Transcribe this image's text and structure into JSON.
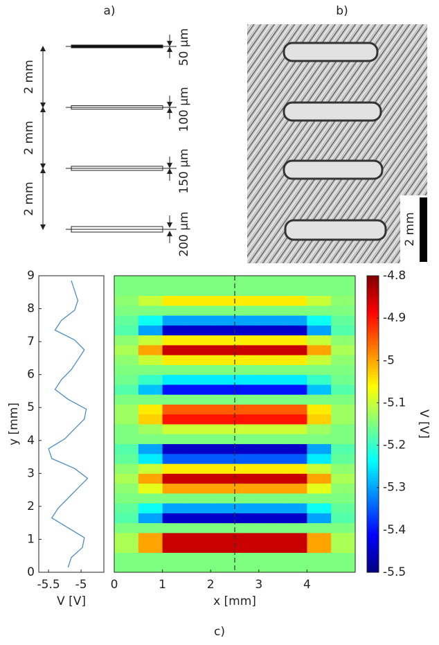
{
  "panel_a": {
    "label": "a)",
    "spacings": [
      "2 mm",
      "2 mm",
      "2 mm"
    ],
    "widths": [
      "50 µm",
      "100 µm",
      "150 µm",
      "200 µm"
    ]
  },
  "panel_b": {
    "label": "b)",
    "scale_bar": "2 mm"
  },
  "panel_c_label": "c)",
  "chart_data": [
    {
      "type": "line",
      "x_label": "V [V]",
      "y_label": "y [mm]",
      "color": "#4a8cc8",
      "y": [
        0.15,
        0.45,
        0.75,
        1.05,
        1.35,
        1.65,
        1.95,
        2.25,
        2.55,
        2.85,
        3.15,
        3.45,
        3.75,
        4.05,
        4.35,
        4.65,
        4.95,
        5.25,
        5.55,
        5.85,
        6.15,
        6.45,
        6.75,
        7.05,
        7.35,
        7.65,
        7.95,
        8.25,
        8.55,
        8.85
      ],
      "values": [
        -5.2,
        -5.15,
        -4.98,
        -4.95,
        -5.2,
        -5.45,
        -5.35,
        -5.2,
        -5.05,
        -4.9,
        -5.1,
        -5.45,
        -5.5,
        -5.25,
        -5.1,
        -4.95,
        -4.92,
        -5.2,
        -5.4,
        -5.3,
        -5.15,
        -5.05,
        -4.95,
        -5.1,
        -5.4,
        -5.3,
        -5.1,
        -5.05,
        -5.1,
        -5.15
      ],
      "xlim": [
        -5.65,
        -4.65
      ],
      "xticks": [
        -5.5,
        -5
      ],
      "ylim": [
        0,
        9
      ],
      "yticks": [
        0,
        1,
        2,
        3,
        4,
        5,
        6,
        7,
        8,
        9
      ]
    },
    {
      "type": "heatmap",
      "x_label": "x [mm]",
      "x": [
        0.25,
        0.75,
        1.25,
        1.75,
        2.25,
        2.75,
        3.25,
        3.75,
        4.25,
        4.75
      ],
      "y": [
        0.15,
        0.45,
        0.75,
        1.05,
        1.35,
        1.65,
        1.95,
        2.25,
        2.55,
        2.85,
        3.15,
        3.45,
        3.75,
        4.05,
        4.35,
        4.65,
        4.95,
        5.25,
        5.55,
        5.85,
        6.15,
        6.45,
        6.75,
        7.05,
        7.35,
        7.65,
        7.95,
        8.25,
        8.55,
        8.85
      ],
      "z": [
        [
          -5.15,
          -5.15,
          -5.15,
          -5.15,
          -5.15,
          -5.15,
          -5.15,
          -5.15,
          -5.15,
          -5.15
        ],
        [
          -5.15,
          -5.15,
          -5.15,
          -5.15,
          -5.15,
          -5.15,
          -5.15,
          -5.15,
          -5.15,
          -5.15
        ],
        [
          -5.12,
          -5.0,
          -4.85,
          -4.85,
          -4.85,
          -4.85,
          -4.85,
          -4.85,
          -5.0,
          -5.12
        ],
        [
          -5.12,
          -5.0,
          -4.85,
          -4.85,
          -4.85,
          -4.85,
          -4.85,
          -4.85,
          -5.0,
          -5.12
        ],
        [
          -5.15,
          -5.15,
          -5.15,
          -5.15,
          -5.15,
          -5.15,
          -5.15,
          -5.15,
          -5.15,
          -5.15
        ],
        [
          -5.18,
          -5.3,
          -5.45,
          -5.45,
          -5.45,
          -5.45,
          -5.45,
          -5.45,
          -5.3,
          -5.18
        ],
        [
          -5.17,
          -5.23,
          -5.3,
          -5.3,
          -5.3,
          -5.3,
          -5.3,
          -5.3,
          -5.23,
          -5.17
        ],
        [
          -5.15,
          -5.15,
          -5.15,
          -5.15,
          -5.15,
          -5.15,
          -5.15,
          -5.15,
          -5.15,
          -5.15
        ],
        [
          -5.14,
          -5.08,
          -5.0,
          -5.0,
          -5.0,
          -5.0,
          -5.0,
          -5.0,
          -5.08,
          -5.14
        ],
        [
          -5.12,
          -5.0,
          -4.85,
          -4.85,
          -4.85,
          -4.85,
          -4.85,
          -4.85,
          -5.0,
          -5.12
        ],
        [
          -5.14,
          -5.1,
          -5.05,
          -5.05,
          -5.05,
          -5.05,
          -5.05,
          -5.05,
          -5.1,
          -5.14
        ],
        [
          -5.17,
          -5.25,
          -5.35,
          -5.35,
          -5.35,
          -5.35,
          -5.35,
          -5.35,
          -5.25,
          -5.17
        ],
        [
          -5.18,
          -5.3,
          -5.45,
          -5.45,
          -5.45,
          -5.45,
          -5.45,
          -5.45,
          -5.3,
          -5.18
        ],
        [
          -5.15,
          -5.15,
          -5.15,
          -5.15,
          -5.15,
          -5.15,
          -5.15,
          -5.15,
          -5.15,
          -5.15
        ],
        [
          -5.15,
          -5.13,
          -5.1,
          -5.1,
          -5.1,
          -5.1,
          -5.1,
          -5.1,
          -5.13,
          -5.15
        ],
        [
          -5.13,
          -5.03,
          -4.9,
          -4.9,
          -4.9,
          -4.9,
          -4.9,
          -4.9,
          -5.03,
          -5.13
        ],
        [
          -5.13,
          -5.05,
          -4.95,
          -4.95,
          -4.95,
          -4.95,
          -4.95,
          -4.95,
          -5.05,
          -5.13
        ],
        [
          -5.15,
          -5.15,
          -5.15,
          -5.15,
          -5.15,
          -5.15,
          -5.15,
          -5.15,
          -5.15,
          -5.15
        ],
        [
          -5.18,
          -5.28,
          -5.4,
          -5.4,
          -5.4,
          -5.4,
          -5.4,
          -5.4,
          -5.28,
          -5.18
        ],
        [
          -5.16,
          -5.2,
          -5.25,
          -5.25,
          -5.25,
          -5.25,
          -5.25,
          -5.25,
          -5.2,
          -5.16
        ],
        [
          -5.15,
          -5.15,
          -5.15,
          -5.15,
          -5.15,
          -5.15,
          -5.15,
          -5.15,
          -5.15,
          -5.15
        ],
        [
          -5.14,
          -5.1,
          -5.05,
          -5.05,
          -5.05,
          -5.05,
          -5.05,
          -5.05,
          -5.1,
          -5.14
        ],
        [
          -5.12,
          -5.0,
          -4.85,
          -4.85,
          -4.85,
          -4.85,
          -4.85,
          -4.85,
          -5.0,
          -5.12
        ],
        [
          -5.14,
          -5.1,
          -5.05,
          -5.05,
          -5.05,
          -5.05,
          -5.05,
          -5.05,
          -5.1,
          -5.14
        ],
        [
          -5.18,
          -5.3,
          -5.45,
          -5.45,
          -5.45,
          -5.45,
          -5.45,
          -5.45,
          -5.3,
          -5.18
        ],
        [
          -5.17,
          -5.23,
          -5.3,
          -5.3,
          -5.3,
          -5.3,
          -5.3,
          -5.3,
          -5.23,
          -5.17
        ],
        [
          -5.15,
          -5.15,
          -5.15,
          -5.15,
          -5.15,
          -5.15,
          -5.15,
          -5.15,
          -5.15,
          -5.15
        ],
        [
          -5.14,
          -5.1,
          -5.05,
          -5.05,
          -5.05,
          -5.05,
          -5.05,
          -5.05,
          -5.1,
          -5.14
        ],
        [
          -5.15,
          -5.15,
          -5.15,
          -5.15,
          -5.15,
          -5.15,
          -5.15,
          -5.15,
          -5.15,
          -5.15
        ],
        [
          -5.15,
          -5.15,
          -5.15,
          -5.15,
          -5.15,
          -5.15,
          -5.15,
          -5.15,
          -5.15,
          -5.15
        ]
      ],
      "xlim": [
        0,
        5
      ],
      "xticks": [
        0,
        1,
        2,
        3,
        4
      ],
      "ylim": [
        0,
        9
      ],
      "cut_x": 2.5,
      "colorbar": {
        "label": "V [V]",
        "colormap": "jet",
        "clim": [
          -5.5,
          -4.8
        ],
        "ticks": [
          -4.8,
          -4.9,
          -5,
          -5.1,
          -5.2,
          -5.3,
          -5.4,
          -5.5
        ]
      }
    }
  ]
}
